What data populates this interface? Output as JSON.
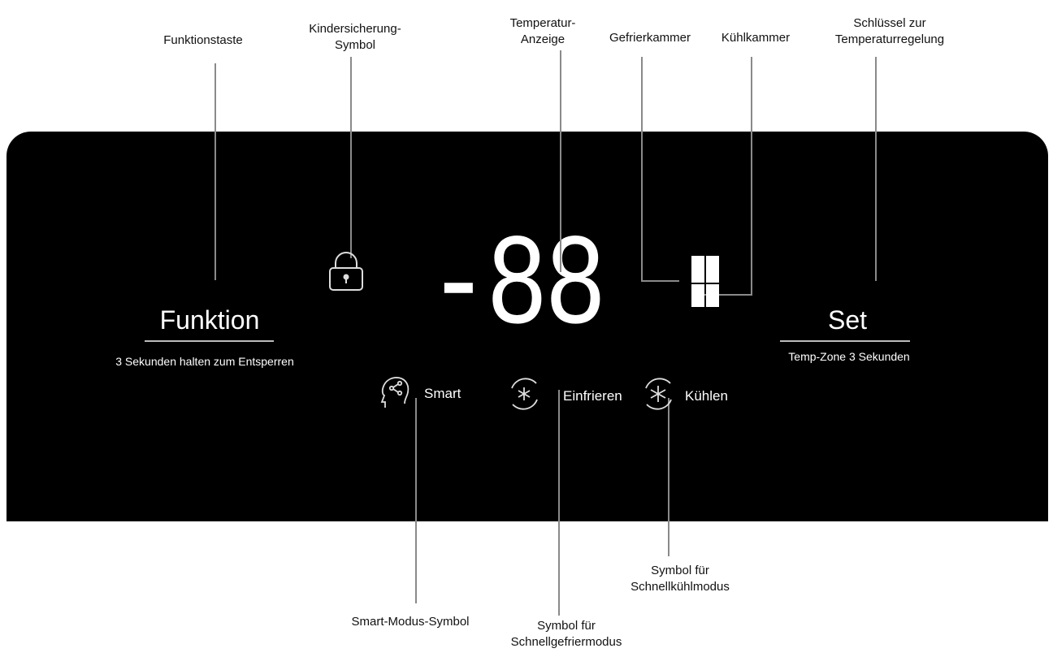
{
  "callouts": {
    "function_key": "Funktionstaste",
    "child_lock_line1": "Kindersicherung-",
    "child_lock_line2": "Symbol",
    "temp_display_line1": "Temperatur-",
    "temp_display_line2": "Anzeige",
    "freezer": "Gefrierkammer",
    "fridge": "Kühlkammer",
    "temp_key_line1": "Schlüssel zur",
    "temp_key_line2": "Temperaturregelung",
    "smart_symbol": "Smart-Modus-Symbol",
    "fast_freeze_line1": "Symbol für",
    "fast_freeze_line2": "Schnellgefriermodus",
    "fast_cool_line1": "Symbol für",
    "fast_cool_line2": "Schnellkühlmodus"
  },
  "panel": {
    "function_button": "Funktion",
    "function_hint": "3 Sekunden halten zum Entsperren",
    "set_button": "Set",
    "set_hint": "Temp-Zone 3 Sekunden",
    "display_digits": "-88",
    "modes": [
      {
        "label": "Smart",
        "icon": "smart-head-icon"
      },
      {
        "label": "Einfrieren",
        "icon": "snowflake-icon"
      },
      {
        "label": "Kühlen",
        "icon": "asterisk-cool-icon"
      }
    ],
    "colors": {
      "panel": "#000000",
      "segment": "#ffffff",
      "leader": "#8a8a8a"
    }
  }
}
